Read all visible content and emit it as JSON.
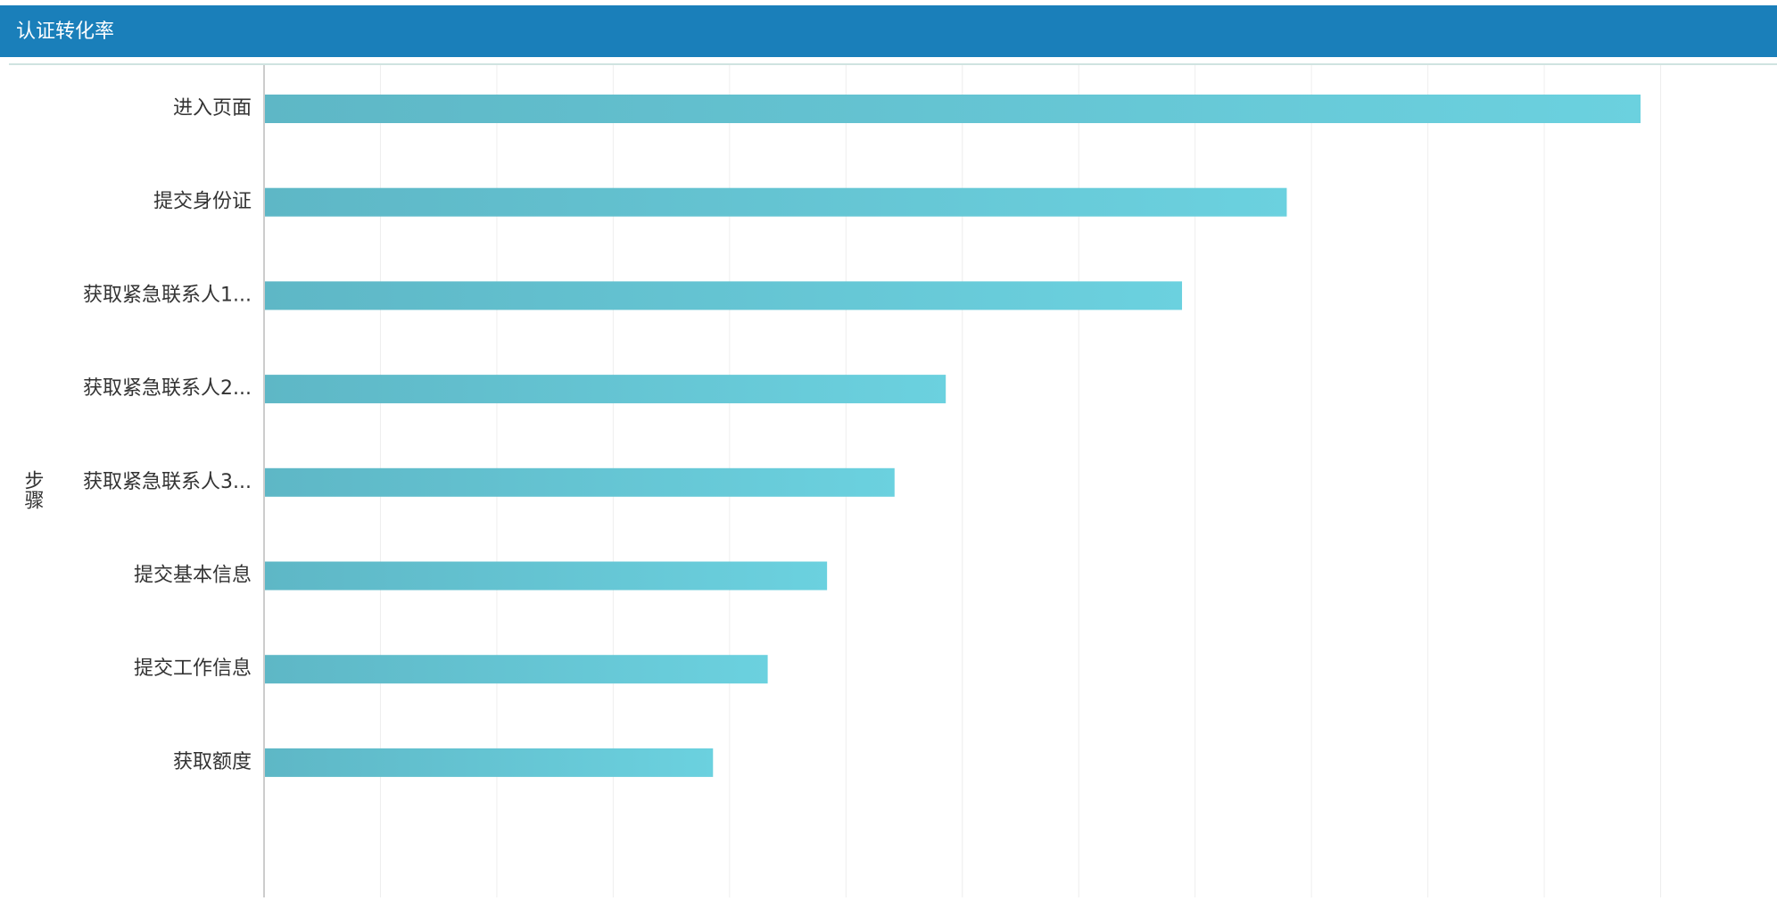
{
  "header": {
    "title": "认证转化率"
  },
  "chart_data": {
    "type": "bar",
    "orientation": "horizontal",
    "y_axis_label": "步骤",
    "categories": [
      "进入页面",
      "提交身份证",
      "获取紧急联系人1...",
      "获取紧急联系人2...",
      "获取紧急联系人3...",
      "提交基本信息",
      "提交工作信息",
      "获取额度"
    ],
    "values": [
      11.82,
      8.78,
      7.88,
      5.85,
      5.41,
      4.83,
      4.32,
      3.85
    ],
    "color": "#66c6d6",
    "xlim": [
      0,
      13
    ],
    "xticks": [
      0,
      1,
      2,
      3,
      4,
      5,
      6,
      7,
      8,
      9,
      10,
      11,
      12
    ],
    "grid": true
  }
}
